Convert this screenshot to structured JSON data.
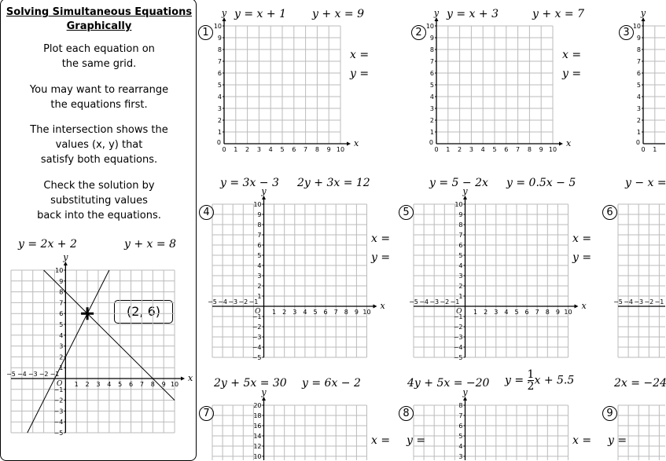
{
  "sidebar": {
    "title_line1": "Solving Simultaneous Equations",
    "title_line2": "Graphically",
    "paragraphs": [
      [
        "Plot each equation on",
        "the same grid."
      ],
      [
        "You may want to rearrange",
        "the equations first."
      ],
      [
        "The intersection shows the",
        "values (x, y) that",
        "satisfy both equations."
      ],
      [
        "Check the solution by",
        "substituting values",
        "back into the equations."
      ]
    ],
    "example": {
      "eq1": "y = 2x + 2",
      "eq2": "y + x = 8",
      "solution": "(2, 6)",
      "lines": [
        {
          "m": 2,
          "c": 2,
          "x_from": -3.5,
          "x_to": 4
        },
        {
          "m": -1,
          "c": 8,
          "x_from": -2,
          "x_to": 10
        }
      ],
      "intersection": [
        2,
        6
      ],
      "axes": {
        "xmin": -5,
        "xmax": 10,
        "ymin": -5,
        "ymax": 10,
        "ystep": 1
      }
    }
  },
  "answer_labels": {
    "x": "x =",
    "y": "y ="
  },
  "axis_labels": {
    "x": "x",
    "y": "y",
    "origin": "O"
  },
  "problems": [
    {
      "number": "1",
      "eq1": "y = x + 1",
      "eq2": "y + x = 9",
      "axes": {
        "xmin": 0,
        "xmax": 10,
        "ymin": 0,
        "ymax": 10,
        "ystep": 1
      }
    },
    {
      "number": "2",
      "eq1": "y = x + 3",
      "eq2": "y + x = 7",
      "axes": {
        "xmin": 0,
        "xmax": 10,
        "ymin": 0,
        "ymax": 10,
        "ystep": 1
      }
    },
    {
      "number": "3",
      "eq1": "",
      "eq2": "",
      "axes": {
        "xmin": 0,
        "xmax": 10,
        "ymin": 0,
        "ymax": 10,
        "ystep": 1
      }
    },
    {
      "number": "4",
      "eq1": "y = 3x − 3",
      "eq2": "2y + 3x = 12",
      "axes": {
        "xmin": -5,
        "xmax": 10,
        "ymin": -5,
        "ymax": 10,
        "ystep": 1
      }
    },
    {
      "number": "5",
      "eq1": "y = 5 − 2x",
      "eq2": "y = 0.5x − 5",
      "axes": {
        "xmin": -5,
        "xmax": 10,
        "ymin": -5,
        "ymax": 10,
        "ystep": 1
      }
    },
    {
      "number": "6",
      "eq1": "y − x =",
      "eq2": "",
      "axes": {
        "xmin": -5,
        "xmax": 10,
        "ymin": -5,
        "ymax": 10,
        "ystep": 1
      }
    },
    {
      "number": "7",
      "eq1": "2y + 5x = 30",
      "eq2": "y = 6x − 2",
      "axes": {
        "xmin": -5,
        "xmax": 10,
        "ymin": 0,
        "ymax": 20,
        "ystep": 2
      }
    },
    {
      "number": "8",
      "eq1": "4y + 5x = −20",
      "eq2_prefix": "y =",
      "eq2_num": "1",
      "eq2_den": "2",
      "eq2_suffix": "x + 5.5",
      "axes": {
        "xmin": -5,
        "xmax": 10,
        "ymin": 0,
        "ymax": 8,
        "ystep": 1
      }
    },
    {
      "number": "9",
      "eq1": "2x = −24",
      "eq2": "",
      "axes": {
        "xmin": -5,
        "xmax": 10,
        "ymin": 0,
        "ymax": 8,
        "ystep": 1
      }
    }
  ]
}
